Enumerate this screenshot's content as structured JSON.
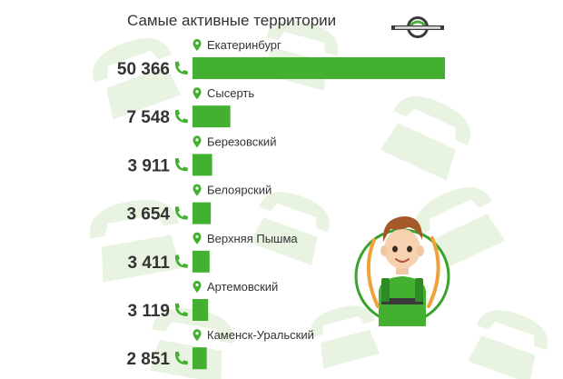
{
  "colors": {
    "bar": "#44b031",
    "phone_icon": "#44b031",
    "pin_icon": "#44b031",
    "background_pattern": "#e8f3e1",
    "mascot_ring": "#3aa32c",
    "logo_dark": "#3a3a3a"
  },
  "logo": {
    "icon": "telephone-circle-logo"
  },
  "mascot": {
    "icon": "boy-superhero-mascot"
  },
  "chart_data": {
    "type": "bar",
    "orientation": "horizontal",
    "title": "Самые активные территории",
    "categories": [
      "Екатеринбург",
      "Сысерть",
      "Березовский",
      "Белоярский",
      "Верхняя Пышма",
      "Артемовский",
      "Каменск-Уральский"
    ],
    "values": [
      50366,
      7548,
      3911,
      3654,
      3411,
      3119,
      2851
    ],
    "value_labels": [
      "50 366",
      "7 548",
      "3 911",
      "3 654",
      "3 411",
      "3 119",
      "2 851"
    ],
    "label_icon": "location-pin-icon",
    "value_icon": "phone-icon",
    "grid": false,
    "legend": "none"
  }
}
